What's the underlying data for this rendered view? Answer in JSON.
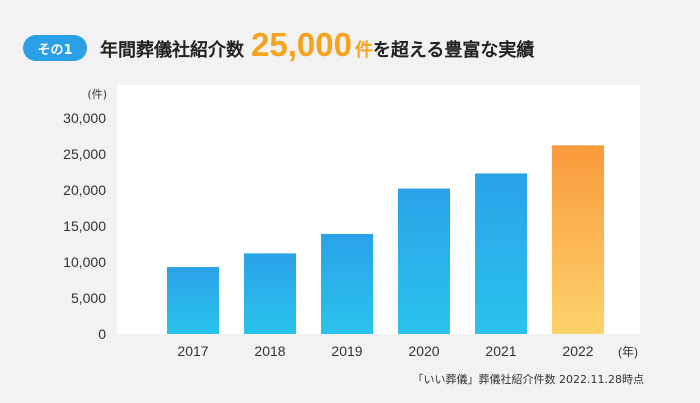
{
  "badge": "その1",
  "heading": {
    "prefix": "年間葬儀社紹介数",
    "number": "25,000",
    "unit": "件",
    "suffix": "を超える豊富な実績"
  },
  "source": "「いい葬儀」葬儀社紹介件数 2022.11.28時点",
  "colors": {
    "bar_top": "#2aa2e8",
    "bar_bottom": "#29c3ec",
    "highlight_top": "#f99a3c",
    "highlight_bottom": "#fdd36b",
    "plot_bg": "#ffffff",
    "page_bg": "#f2f2f2"
  },
  "chart_data": {
    "type": "bar",
    "categories": [
      "2017",
      "2018",
      "2019",
      "2020",
      "2021",
      "2022"
    ],
    "values": [
      9300,
      11200,
      13900,
      20200,
      22300,
      26200
    ],
    "highlight_index": 5,
    "ylabel": "(件)",
    "xlabel": "(年)",
    "ylim": [
      0,
      30000
    ],
    "yticks": [
      "0",
      "5,000",
      "10,000",
      "15,000",
      "20,000",
      "25,000",
      "30,000"
    ],
    "grid": false
  }
}
